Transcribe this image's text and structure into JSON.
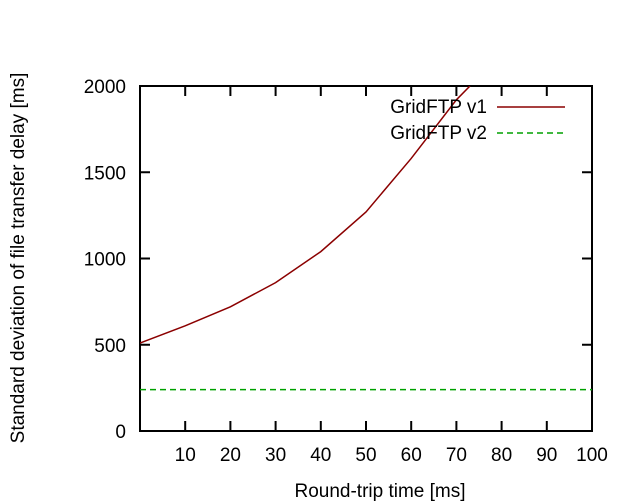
{
  "chart_data": {
    "type": "line",
    "title": "",
    "xlabel": "Round-trip time [ms]",
    "ylabel": "Standard deviation of file transfer delay [ms]",
    "xlim": [
      0,
      100
    ],
    "ylim": [
      0,
      2000
    ],
    "xticks": [
      10,
      20,
      30,
      40,
      50,
      60,
      70,
      80,
      90,
      100
    ],
    "yticks": [
      0,
      500,
      1000,
      1500,
      2000
    ],
    "grid": false,
    "legend_position": "top-right",
    "series": [
      {
        "name": "GridFTP v1",
        "color": "#8b0000",
        "dash": "solid",
        "x": [
          0,
          10,
          20,
          30,
          40,
          50,
          60,
          70,
          73
        ],
        "y": [
          510,
          610,
          720,
          860,
          1040,
          1270,
          1580,
          1920,
          2000
        ]
      },
      {
        "name": "GridFTP v2",
        "color": "#00a000",
        "dash": "dashed",
        "x": [
          0,
          100
        ],
        "y": [
          240,
          240
        ]
      }
    ]
  }
}
